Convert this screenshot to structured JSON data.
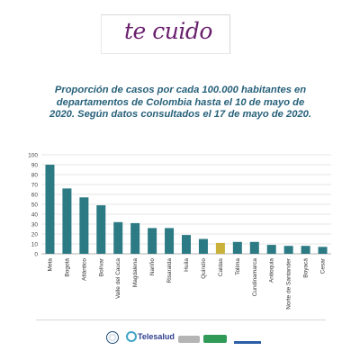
{
  "brand": {
    "tag": "te cuido"
  },
  "caption": "Proporción de casos por cada 100.000 habitantes en departamentos de Colombia hasta el 10 de mayo de 2020. Según datos consultados el 17 de mayo de 2020.",
  "footer": {
    "telesalud_label": "Telesalud"
  },
  "colors": {
    "bar": "#2c7a84",
    "highlight": "#c9b13a",
    "brand": "#6a1f6e",
    "caption": "#26607a"
  },
  "chart_data": {
    "type": "bar",
    "categories": [
      "Meta",
      "Bogotá",
      "Atlántico",
      "Bolívar",
      "Valle del Cauca",
      "Magdalena",
      "Nariño",
      "Risaralda",
      "Huila",
      "Quindío",
      "Caldas",
      "Tolima",
      "Cundinamarca",
      "Antioquia",
      "Norte de Santander",
      "Boyacá",
      "Cesar"
    ],
    "values": [
      90,
      66,
      57,
      49,
      32,
      31,
      26,
      26,
      19,
      15,
      11,
      12,
      12,
      9,
      8,
      8,
      7
    ],
    "highlight_index": 10,
    "ylim": [
      0,
      100
    ],
    "yticks": [
      0,
      10,
      20,
      30,
      40,
      50,
      60,
      70,
      80,
      90,
      100
    ],
    "grid": true,
    "title": "",
    "xlabel": "",
    "ylabel": ""
  }
}
